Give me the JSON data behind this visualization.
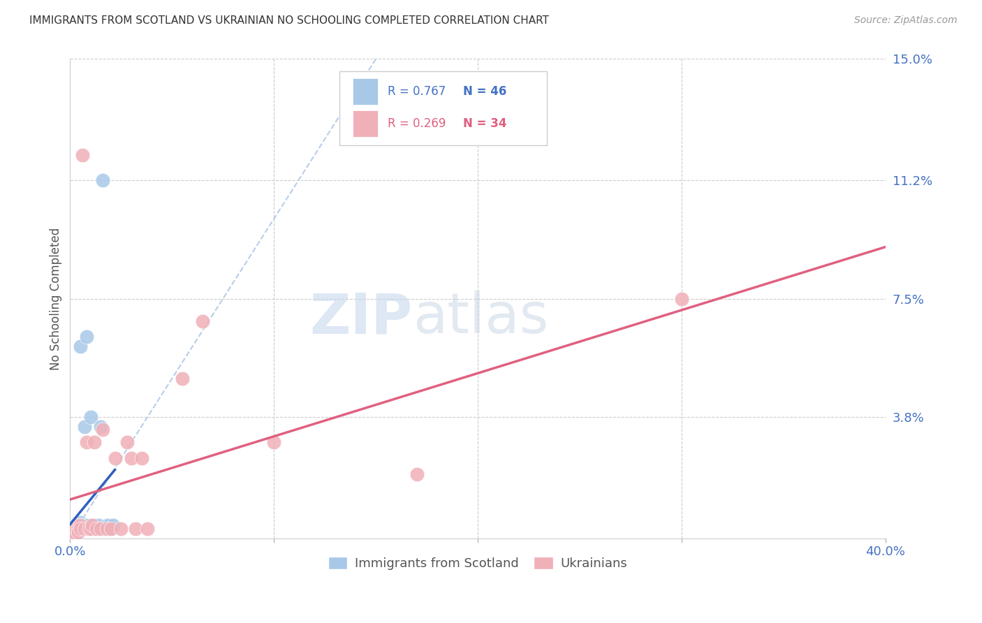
{
  "title": "IMMIGRANTS FROM SCOTLAND VS UKRAINIAN NO SCHOOLING COMPLETED CORRELATION CHART",
  "source": "Source: ZipAtlas.com",
  "ylabel": "No Schooling Completed",
  "xlim": [
    0.0,
    0.4
  ],
  "ylim": [
    0.0,
    0.15
  ],
  "xticks": [
    0.0,
    0.1,
    0.2,
    0.3,
    0.4
  ],
  "xtick_labels": [
    "0.0%",
    "",
    "",
    "",
    "40.0%"
  ],
  "yticks_right": [
    0.038,
    0.075,
    0.112,
    0.15
  ],
  "ytick_labels_right": [
    "3.8%",
    "7.5%",
    "11.2%",
    "15.0%"
  ],
  "blue_color": "#a8c8e8",
  "pink_color": "#f0b0b8",
  "trend_blue": "#3060c0",
  "trend_pink": "#e06080",
  "dash_color": "#b0c8e8",
  "watermark_zip": "ZIP",
  "watermark_atlas": "atlas",
  "legend_R1": "R = 0.767",
  "legend_N1": "N = 46",
  "legend_R2": "R = 0.269",
  "legend_N2": "N = 34",
  "scotland_x": [
    0.0008,
    0.001,
    0.0012,
    0.0015,
    0.0015,
    0.002,
    0.002,
    0.002,
    0.0022,
    0.0025,
    0.003,
    0.003,
    0.003,
    0.003,
    0.0035,
    0.004,
    0.004,
    0.004,
    0.004,
    0.0045,
    0.005,
    0.005,
    0.005,
    0.005,
    0.006,
    0.006,
    0.006,
    0.007,
    0.007,
    0.008,
    0.008,
    0.009,
    0.01,
    0.01,
    0.011,
    0.012,
    0.013,
    0.014,
    0.015,
    0.016,
    0.017,
    0.018,
    0.018,
    0.019,
    0.02,
    0.021
  ],
  "scotland_y": [
    0.003,
    0.002,
    0.001,
    0.003,
    0.002,
    0.003,
    0.002,
    0.001,
    0.004,
    0.003,
    0.002,
    0.003,
    0.004,
    0.002,
    0.003,
    0.002,
    0.003,
    0.004,
    0.003,
    0.004,
    0.06,
    0.005,
    0.003,
    0.004,
    0.003,
    0.004,
    0.003,
    0.035,
    0.004,
    0.003,
    0.063,
    0.004,
    0.003,
    0.038,
    0.003,
    0.004,
    0.003,
    0.004,
    0.035,
    0.112,
    0.003,
    0.004,
    0.003,
    0.004,
    0.003,
    0.004
  ],
  "ukraine_x": [
    0.001,
    0.001,
    0.002,
    0.002,
    0.003,
    0.003,
    0.004,
    0.004,
    0.005,
    0.005,
    0.006,
    0.007,
    0.008,
    0.009,
    0.01,
    0.011,
    0.012,
    0.013,
    0.015,
    0.016,
    0.018,
    0.02,
    0.022,
    0.025,
    0.028,
    0.03,
    0.032,
    0.035,
    0.038,
    0.055,
    0.065,
    0.1,
    0.17,
    0.3
  ],
  "ukraine_y": [
    0.003,
    0.002,
    0.003,
    0.002,
    0.004,
    0.003,
    0.003,
    0.002,
    0.004,
    0.003,
    0.12,
    0.003,
    0.03,
    0.003,
    0.003,
    0.004,
    0.03,
    0.003,
    0.003,
    0.034,
    0.003,
    0.003,
    0.025,
    0.003,
    0.03,
    0.025,
    0.003,
    0.025,
    0.003,
    0.05,
    0.068,
    0.03,
    0.02,
    0.075
  ]
}
